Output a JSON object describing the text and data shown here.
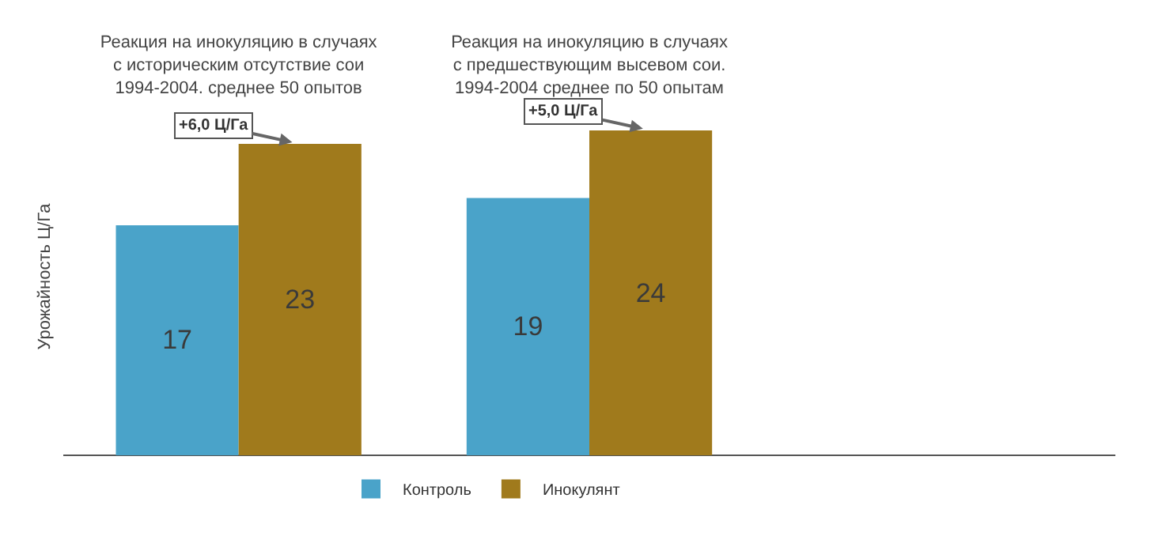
{
  "chart_data": {
    "type": "bar",
    "categories": [
      "Реакция на инокуляцию в случаях\nс историческим отсутствие сои\n1994-2004. среднее 50 опытов",
      "Реакция на инокуляцию в случаях\nс предшествующим высевом сои.\n1994-2004 среднее по 50 опытам"
    ],
    "series": [
      {
        "name": "Контроль",
        "color": "#4aa3c9",
        "values": [
          17,
          19
        ]
      },
      {
        "name": "Инокулянт",
        "color": "#a07a1c",
        "values": [
          23,
          24
        ]
      }
    ],
    "ylabel": "Урожайность Ц/Га",
    "data_labels": true,
    "legend": "bottom",
    "grid": false,
    "annotations": [
      "+6,0 Ц/Га",
      "+5,0 Ц/Га"
    ]
  }
}
